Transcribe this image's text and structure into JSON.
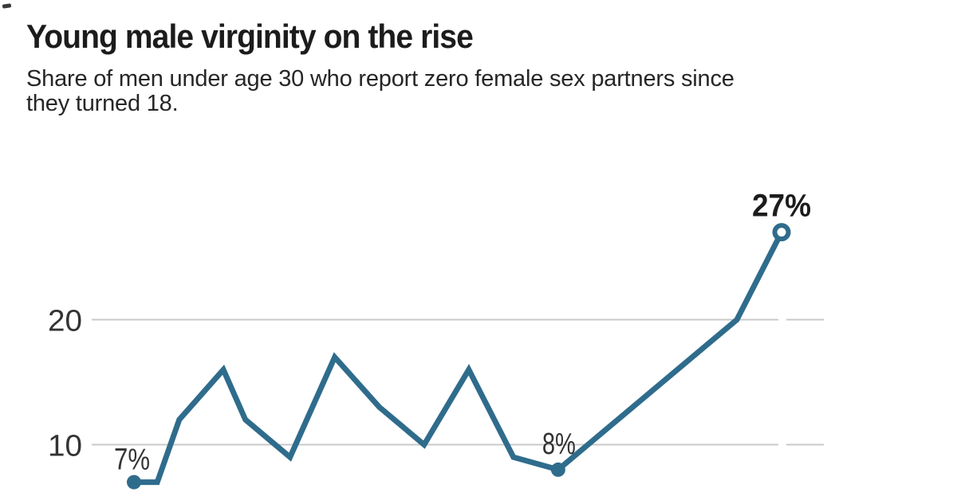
{
  "header": {
    "title": "Young male virginity on the rise",
    "subtitle_lines": [
      "Share of men under age 30 who report zero female sex partners since",
      "they turned 18."
    ]
  },
  "colors": {
    "line": "#2f6c8c",
    "gridline": "#c9c9c9",
    "tick_label": "#333333",
    "data_label": "#333333",
    "emphasis_label": "#1c1c1c",
    "background": "#ffffff",
    "title_text": "#1c1c1c"
  },
  "chart_data": {
    "type": "line",
    "title": "Young male virginity on the rise",
    "subtitle": "Share of men under age 30 who report zero female sex partners since they turned 18.",
    "xlabel": "",
    "ylabel": "",
    "unit": "%",
    "ylim": [
      5,
      30
    ],
    "grid": "horizontal-only",
    "legend": "none",
    "x_axis_labels": "none-visible",
    "y_ticks": [
      {
        "value": 20,
        "label": "20"
      },
      {
        "value": 10,
        "label": "10"
      }
    ],
    "series": [
      {
        "name": "share-reporting-zero-partners",
        "points": [
          {
            "x": 0.0,
            "value": 7,
            "marker": "filled-dot",
            "label": "7%"
          },
          {
            "x": 0.036,
            "value": 7
          },
          {
            "x": 0.07,
            "value": 12
          },
          {
            "x": 0.138,
            "value": 16
          },
          {
            "x": 0.172,
            "value": 12
          },
          {
            "x": 0.241,
            "value": 9
          },
          {
            "x": 0.31,
            "value": 17
          },
          {
            "x": 0.379,
            "value": 13
          },
          {
            "x": 0.448,
            "value": 10
          },
          {
            "x": 0.517,
            "value": 16
          },
          {
            "x": 0.586,
            "value": 9
          },
          {
            "x": 0.655,
            "value": 8,
            "marker": "filled-dot",
            "label": "8%"
          },
          {
            "x": 0.931,
            "value": 20
          },
          {
            "x": 1.0,
            "value": 27,
            "marker": "open-circle",
            "label": "27%",
            "emphasis": true
          }
        ]
      }
    ]
  }
}
